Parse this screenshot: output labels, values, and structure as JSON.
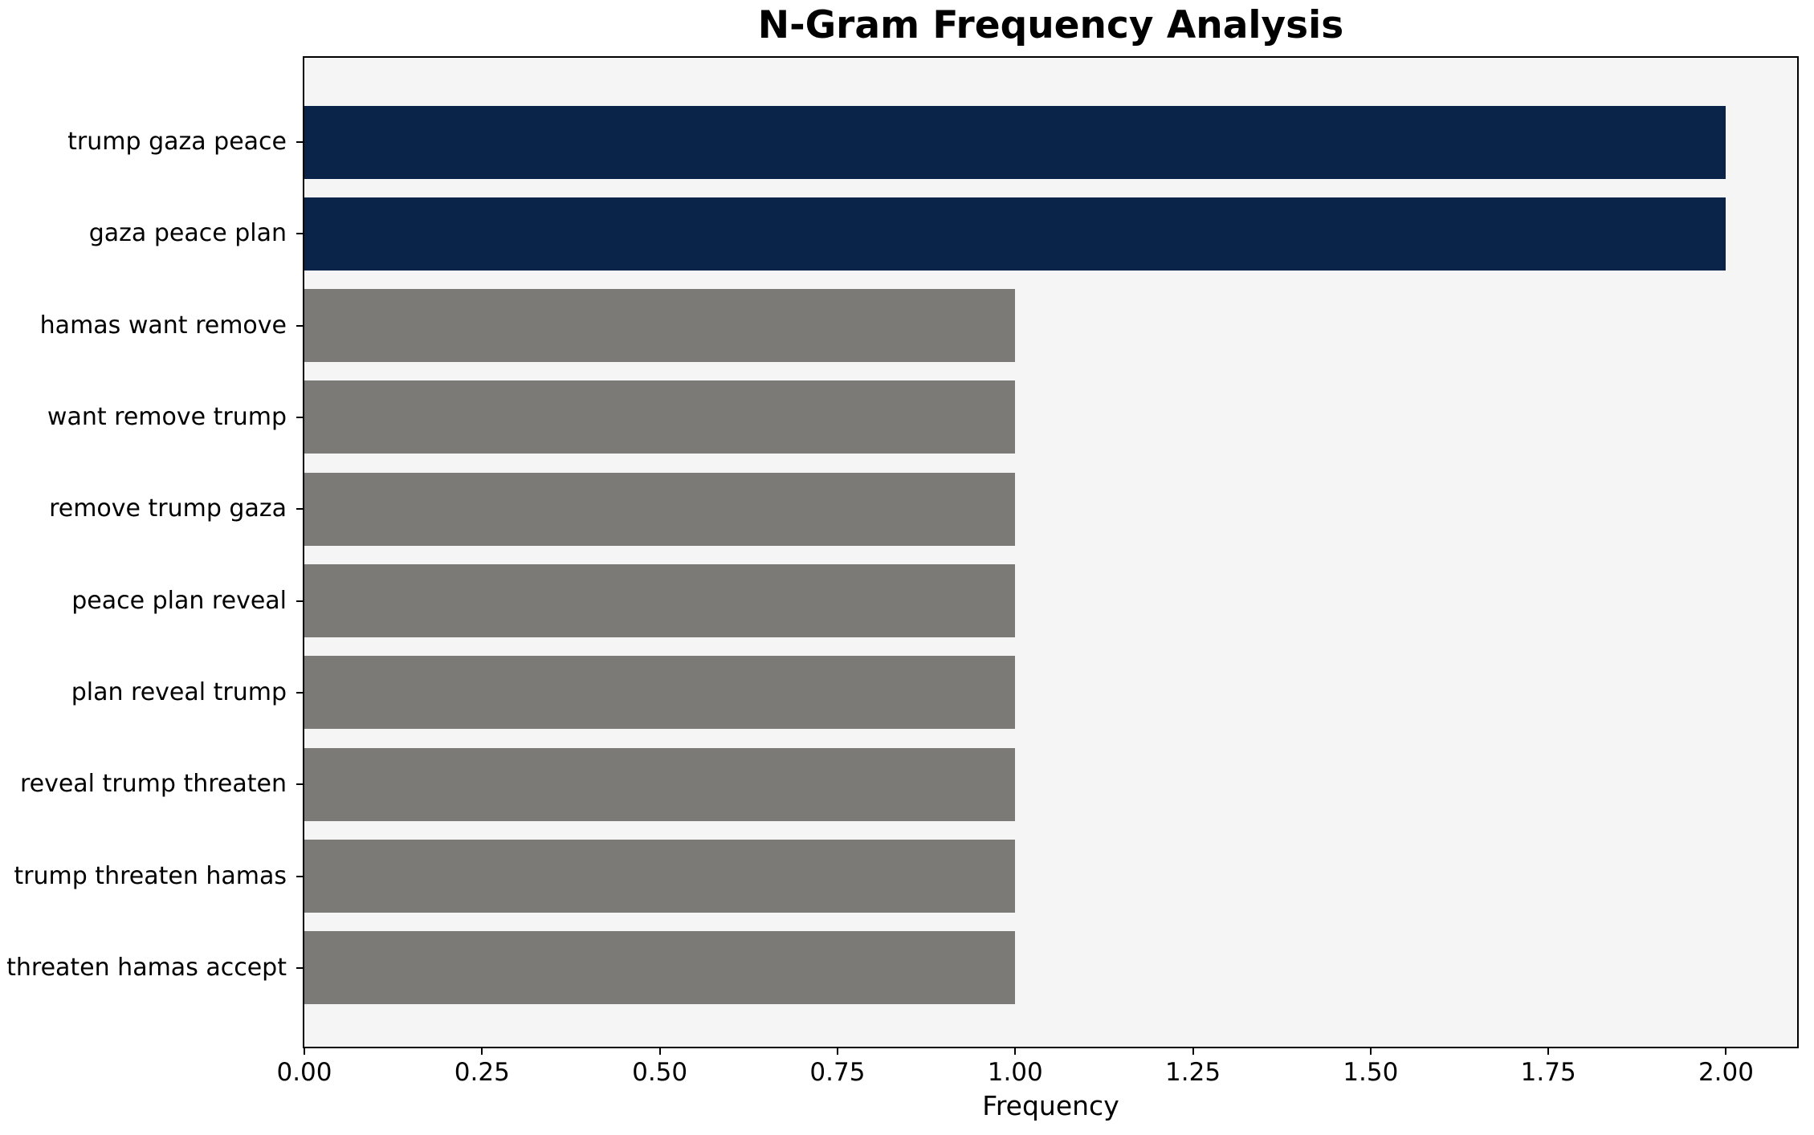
{
  "figure": {
    "background": "#ffffff",
    "plot_background": "#f5f5f5",
    "axis_color": "#000000"
  },
  "chart_data": {
    "type": "bar",
    "orientation": "horizontal",
    "title": "N-Gram Frequency Analysis",
    "xlabel": "Frequency",
    "ylabel": "",
    "categories": [
      "trump gaza peace",
      "gaza peace plan",
      "hamas want remove",
      "want remove trump",
      "remove trump gaza",
      "peace plan reveal",
      "plan reveal trump",
      "reveal trump threaten",
      "trump threaten hamas",
      "threaten hamas accept"
    ],
    "values": [
      2,
      2,
      1,
      1,
      1,
      1,
      1,
      1,
      1,
      1
    ],
    "bar_colors": [
      "#0a2348",
      "#0a2348",
      "#7b7a77",
      "#7b7a77",
      "#7b7a77",
      "#7b7a77",
      "#7b7a77",
      "#7b7a77",
      "#7b7a77",
      "#7b7a77"
    ],
    "highlight_color": "#0a2348",
    "default_color": "#7b7a77",
    "xlim": [
      0,
      2.1
    ],
    "xticks": [
      0,
      0.25,
      0.5,
      0.75,
      1.0,
      1.25,
      1.5,
      1.75,
      2.0
    ],
    "xtick_labels": [
      "0.00",
      "0.25",
      "0.50",
      "0.75",
      "1.00",
      "1.25",
      "1.50",
      "1.75",
      "2.00"
    ],
    "grid": false,
    "legend": false
  }
}
